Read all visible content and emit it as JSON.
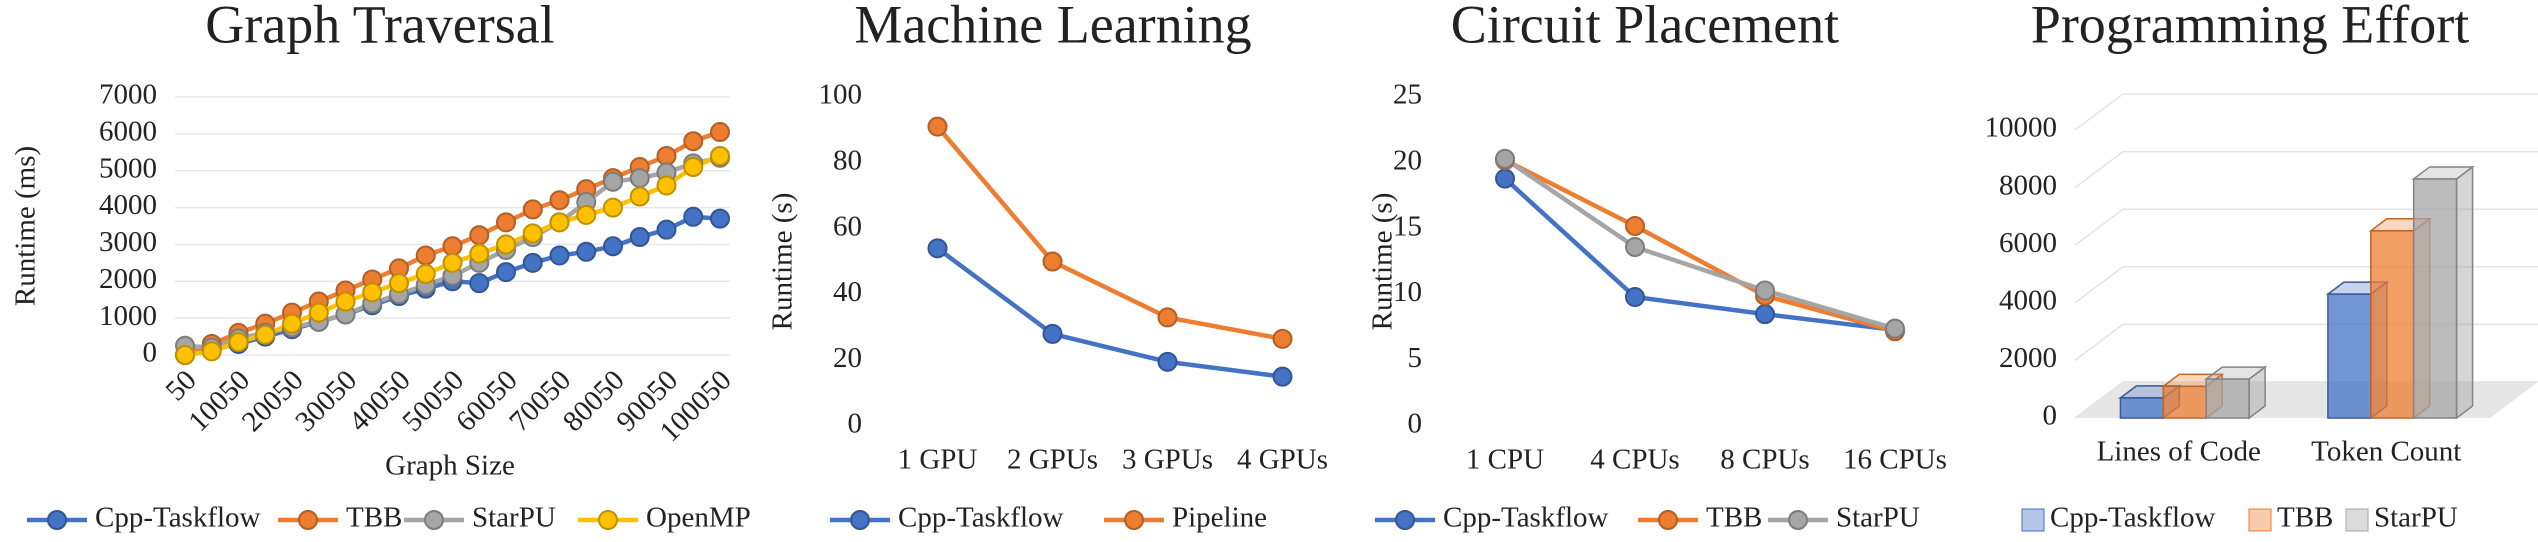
{
  "chart_data": [
    {
      "type": "line",
      "title": "Graph Traversal",
      "y_label": "Runtime (ms)",
      "x_label": "Graph Size",
      "categories": [
        "50",
        null,
        "10050",
        null,
        "20050",
        null,
        "30050",
        null,
        "40050",
        null,
        "50050",
        null,
        "60050",
        null,
        "70050",
        null,
        "80050",
        null,
        "90050",
        null,
        "100050"
      ],
      "series": [
        {
          "name": "Cpp-Taskflow",
          "color": "#4472c4",
          "values": [
            0,
            150,
            300,
            500,
            700,
            900,
            1100,
            1350,
            1600,
            1800,
            2000,
            1950,
            2250,
            2500,
            2700,
            2800,
            2950,
            3200,
            3400,
            3750,
            3700
          ]
        },
        {
          "name": "TBB",
          "color": "#ed7d31",
          "values": [
            0,
            300,
            600,
            850,
            1150,
            1450,
            1750,
            2050,
            2350,
            2700,
            2950,
            3250,
            3600,
            3950,
            4200,
            4500,
            4800,
            5100,
            5400,
            5800,
            6050
          ]
        },
        {
          "name": "StarPU",
          "color": "#a5a5a5",
          "values": [
            250,
            200,
            450,
            600,
            750,
            900,
            1100,
            1400,
            1650,
            1900,
            2150,
            2500,
            2850,
            3200,
            3600,
            4150,
            4700,
            4800,
            4950,
            5200,
            5350
          ]
        },
        {
          "name": "OpenMP",
          "color": "#ffc000",
          "values": [
            0,
            100,
            350,
            550,
            850,
            1150,
            1450,
            1700,
            1950,
            2200,
            2500,
            2750,
            3000,
            3300,
            3600,
            3800,
            4000,
            4300,
            4600,
            5100,
            5400
          ]
        }
      ],
      "ylim": [
        0,
        7000
      ],
      "yticks": [
        0,
        1000,
        2000,
        3000,
        4000,
        5000,
        6000,
        7000
      ],
      "grid": true
    },
    {
      "type": "line",
      "title": "Machine Learning",
      "y_label": "Runtime (s)",
      "categories": [
        "1 GPU",
        "2 GPUs",
        "3 GPUs",
        "4 GPUs"
      ],
      "series": [
        {
          "name": "Cpp-Taskflow",
          "color": "#4472c4",
          "values": [
            54,
            28,
            19.5,
            15
          ]
        },
        {
          "name": "Pipeline",
          "color": "#ed7d31",
          "values": [
            91,
            50,
            33,
            26.5
          ]
        }
      ],
      "ylim": [
        0,
        100
      ],
      "yticks": [
        0,
        20,
        40,
        60,
        80,
        100
      ],
      "grid": false
    },
    {
      "type": "line",
      "title": "Circuit Placement",
      "y_label": "Runtime (s)",
      "categories": [
        "1 CPU",
        "4 CPUs",
        "8 CPUs",
        "16 CPUs"
      ],
      "series": [
        {
          "name": "Cpp-Taskflow",
          "color": "#4472c4",
          "values": [
            18.8,
            9.8,
            8.5,
            7.3
          ]
        },
        {
          "name": "TBB",
          "color": "#ed7d31",
          "values": [
            20.2,
            15.2,
            9.9,
            7.2
          ]
        },
        {
          "name": "StarPU",
          "color": "#a5a5a5",
          "values": [
            20.3,
            13.6,
            10.3,
            7.4
          ]
        }
      ],
      "ylim": [
        0,
        25
      ],
      "yticks": [
        0,
        5,
        10,
        15,
        20,
        25
      ],
      "grid": false
    },
    {
      "type": "bar",
      "title": "Programming Effort",
      "categories": [
        "Lines of Code",
        "Token Count"
      ],
      "series": [
        {
          "name": "Cpp-Taskflow",
          "color": "#4472c4",
          "values": [
            700,
            4300
          ]
        },
        {
          "name": "TBB",
          "color": "#ed7d31",
          "values": [
            1100,
            6500
          ]
        },
        {
          "name": "StarPU",
          "color": "#a5a5a5",
          "values": [
            1350,
            8300
          ]
        }
      ],
      "ylim": [
        0,
        10000
      ],
      "yticks": [
        0,
        2000,
        4000,
        6000,
        8000,
        10000
      ],
      "grid": true
    }
  ]
}
